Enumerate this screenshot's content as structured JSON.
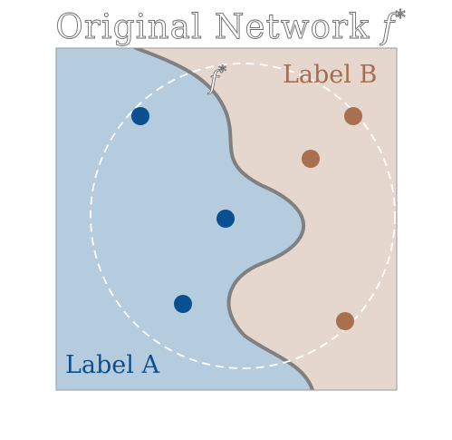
{
  "title": {
    "main": "Original Network ",
    "symbol": "f",
    "superscript": "*"
  },
  "boundary_label": {
    "symbol": "f",
    "superscript": "*"
  },
  "regions": {
    "a": {
      "label": "Label A",
      "fill": "#b5ccdf",
      "text_color": "#0d4f8e"
    },
    "b": {
      "label": "Label B",
      "fill": "#e5d7cd",
      "text_color": "#a56d50"
    }
  },
  "colors": {
    "boundary": "#808080",
    "panel_border": "#9a9a9a",
    "dashed_circle": "#ffffff",
    "point_a": "#0a4f90",
    "point_b": "#a8704f"
  },
  "points": [
    {
      "class": "A"
    },
    {
      "class": "A"
    },
    {
      "class": "A"
    },
    {
      "class": "B"
    },
    {
      "class": "B"
    },
    {
      "class": "B"
    }
  ]
}
